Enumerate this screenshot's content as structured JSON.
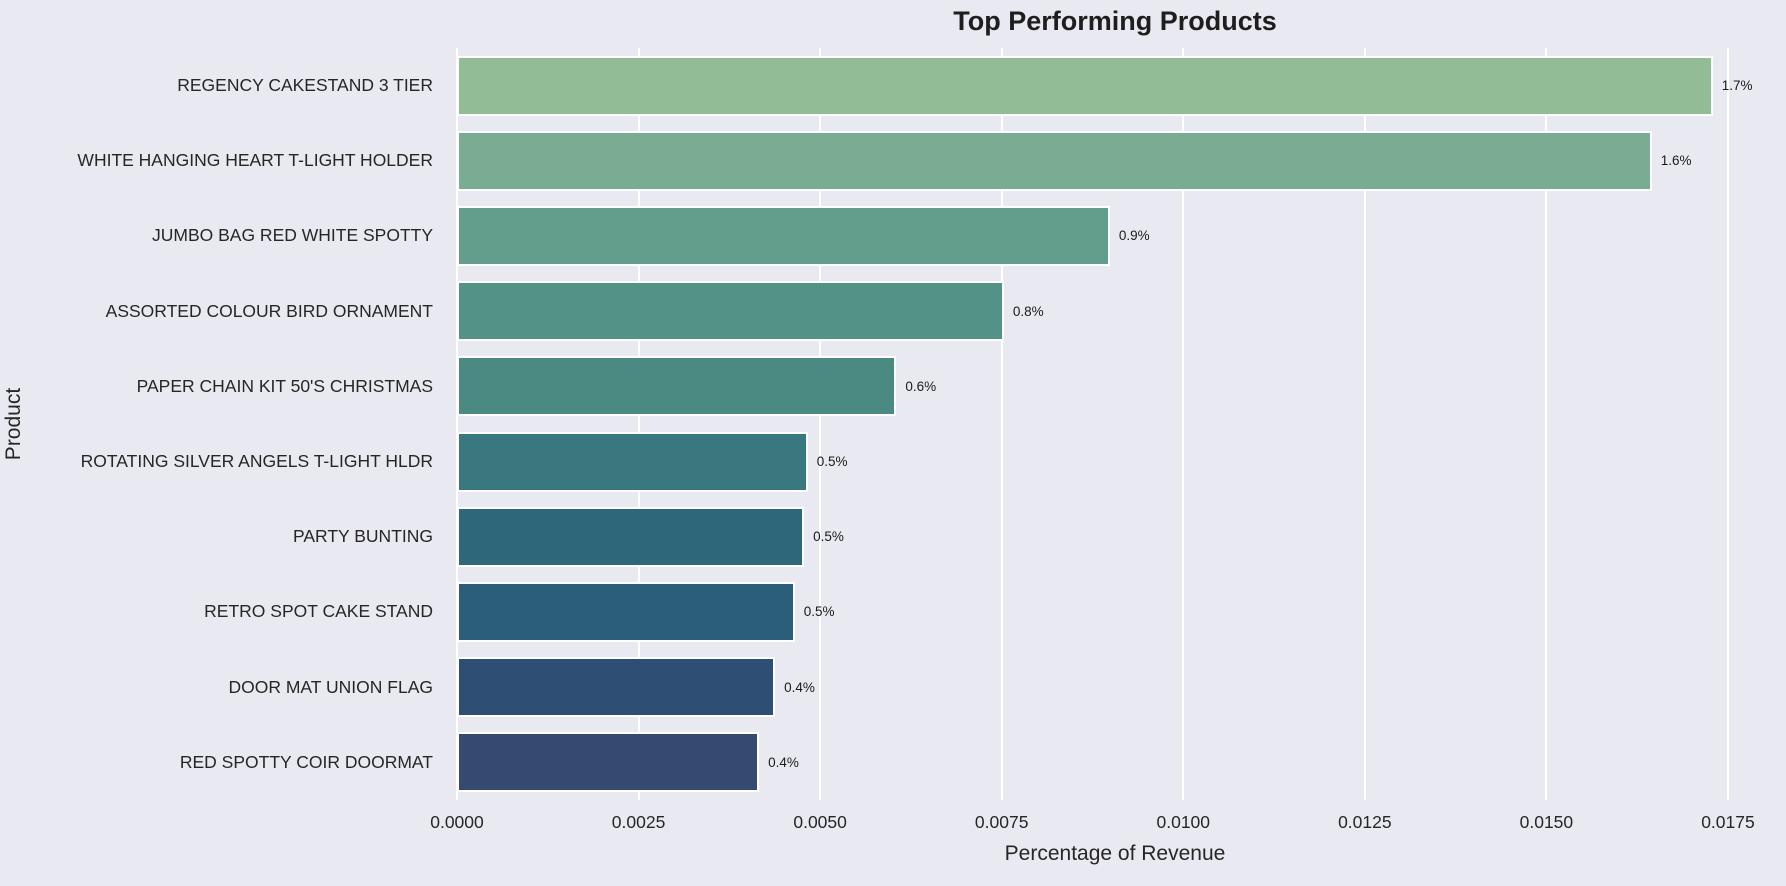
{
  "title": "Top Performing Products",
  "chart_data": {
    "type": "bar",
    "orientation": "horizontal",
    "title": "Top Performing Products",
    "xlabel": "Percentage of Revenue",
    "ylabel": "Product",
    "categories": [
      "REGENCY CAKESTAND 3 TIER",
      "WHITE HANGING HEART T-LIGHT HOLDER",
      "JUMBO BAG RED WHITE SPOTTY",
      "ASSORTED COLOUR BIRD ORNAMENT",
      "PAPER CHAIN KIT 50'S CHRISTMAS",
      "ROTATING SILVER ANGELS T-LIGHT HLDR",
      "PARTY BUNTING",
      "RETRO SPOT CAKE STAND",
      "DOOR MAT UNION FLAG",
      "RED SPOTTY COIR DOORMAT"
    ],
    "values": [
      0.01729,
      0.01645,
      0.00899,
      0.00753,
      0.00605,
      0.00483,
      0.00478,
      0.00465,
      0.00438,
      0.00416
    ],
    "bar_labels": [
      "1.7%",
      "1.6%",
      "0.9%",
      "0.8%",
      "0.6%",
      "0.5%",
      "0.5%",
      "0.5%",
      "0.4%",
      "0.4%"
    ],
    "bar_colors": [
      "#91BC96",
      "#79AC90",
      "#639E8C",
      "#539387",
      "#4A8A82",
      "#3A7880",
      "#2E6779",
      "#2B5E78",
      "#2F4E73",
      "#344A70"
    ],
    "x_ticks": [
      0.0,
      0.0025,
      0.005,
      0.0075,
      0.01,
      0.0125,
      0.015,
      0.0175
    ],
    "x_tick_labels": [
      "0.0000",
      "0.0025",
      "0.0050",
      "0.0075",
      "0.0100",
      "0.0125",
      "0.0150",
      "0.0175"
    ],
    "xlim": [
      0,
      0.01812
    ],
    "grid": true,
    "legend": false,
    "background_color": "#E9E9F1",
    "gridline_color": "#FFFFFF"
  }
}
